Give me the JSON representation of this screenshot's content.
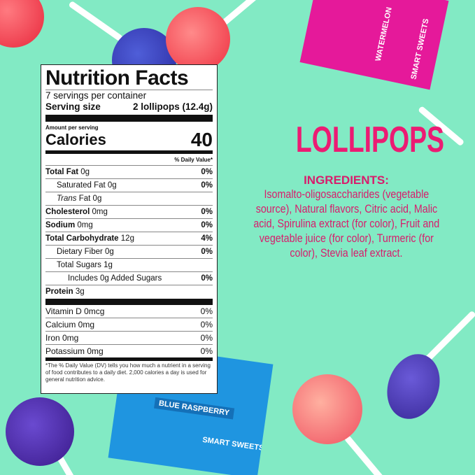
{
  "background_color": "#82eac4",
  "accent_color": "#ec1b73",
  "packages": [
    {
      "flavor": "WATERMELON",
      "brand": "SMART SWEETS",
      "color": "#e5199a"
    },
    {
      "flavor": "BLUE RASPBERRY",
      "brand": "SMART SWEETS",
      "color": "#1f95e0"
    }
  ],
  "nutrition": {
    "title": "Nutrition Facts",
    "servings": "7 servings per container",
    "serving_size_label": "Serving size",
    "serving_size_value": "2 lollipops (12.4g)",
    "amount_per_serving": "Amount per serving",
    "calories_label": "Calories",
    "calories_value": "40",
    "daily_value_header": "% Daily Value*",
    "rows": [
      {
        "label": "Total Fat",
        "amount": "0g",
        "dv": "0%"
      },
      {
        "label": "Saturated Fat",
        "amount": "0g",
        "dv": "0%"
      },
      {
        "label": "Trans",
        "suffix": "Fat 0g",
        "dv": ""
      },
      {
        "label": "Cholesterol",
        "amount": "0mg",
        "dv": "0%"
      },
      {
        "label": "Sodium",
        "amount": "0mg",
        "dv": "0%"
      },
      {
        "label": "Total Carbohydrate",
        "amount": "12g",
        "dv": "4%"
      },
      {
        "label": "Dietary Fiber",
        "amount": "0g",
        "dv": "0%"
      },
      {
        "label": "Total Sugars",
        "amount": "1g",
        "dv": ""
      },
      {
        "label": "Includes 0g Added Sugars",
        "amount": "",
        "dv": "0%"
      },
      {
        "label": "Protein",
        "amount": "3g",
        "dv": ""
      }
    ],
    "micros": [
      {
        "label": "Vitamin D 0mcg",
        "dv": "0%"
      },
      {
        "label": "Calcium 0mg",
        "dv": "0%"
      },
      {
        "label": "Iron 0mg",
        "dv": "0%"
      },
      {
        "label": "Potassium 0mg",
        "dv": "0%"
      }
    ],
    "footnote": "*The % Daily Value (DV) tells you how much a nutrient in a serving of food contributes to a daily diet. 2,000 calories a day is used for general nutrition advice."
  },
  "product_title": "LOLLIPOPS",
  "ingredients": {
    "header": "INGREDIENTS:",
    "lines": [
      "Isomalto-oligosaccharides (vegetable",
      "source), Natural flavors, Citric acid, Malic",
      "acid, Spirulina extract (for color), Fruit and",
      "vegetable juice (for color), Turmeric (for",
      "color), Stevia leaf extract."
    ]
  }
}
